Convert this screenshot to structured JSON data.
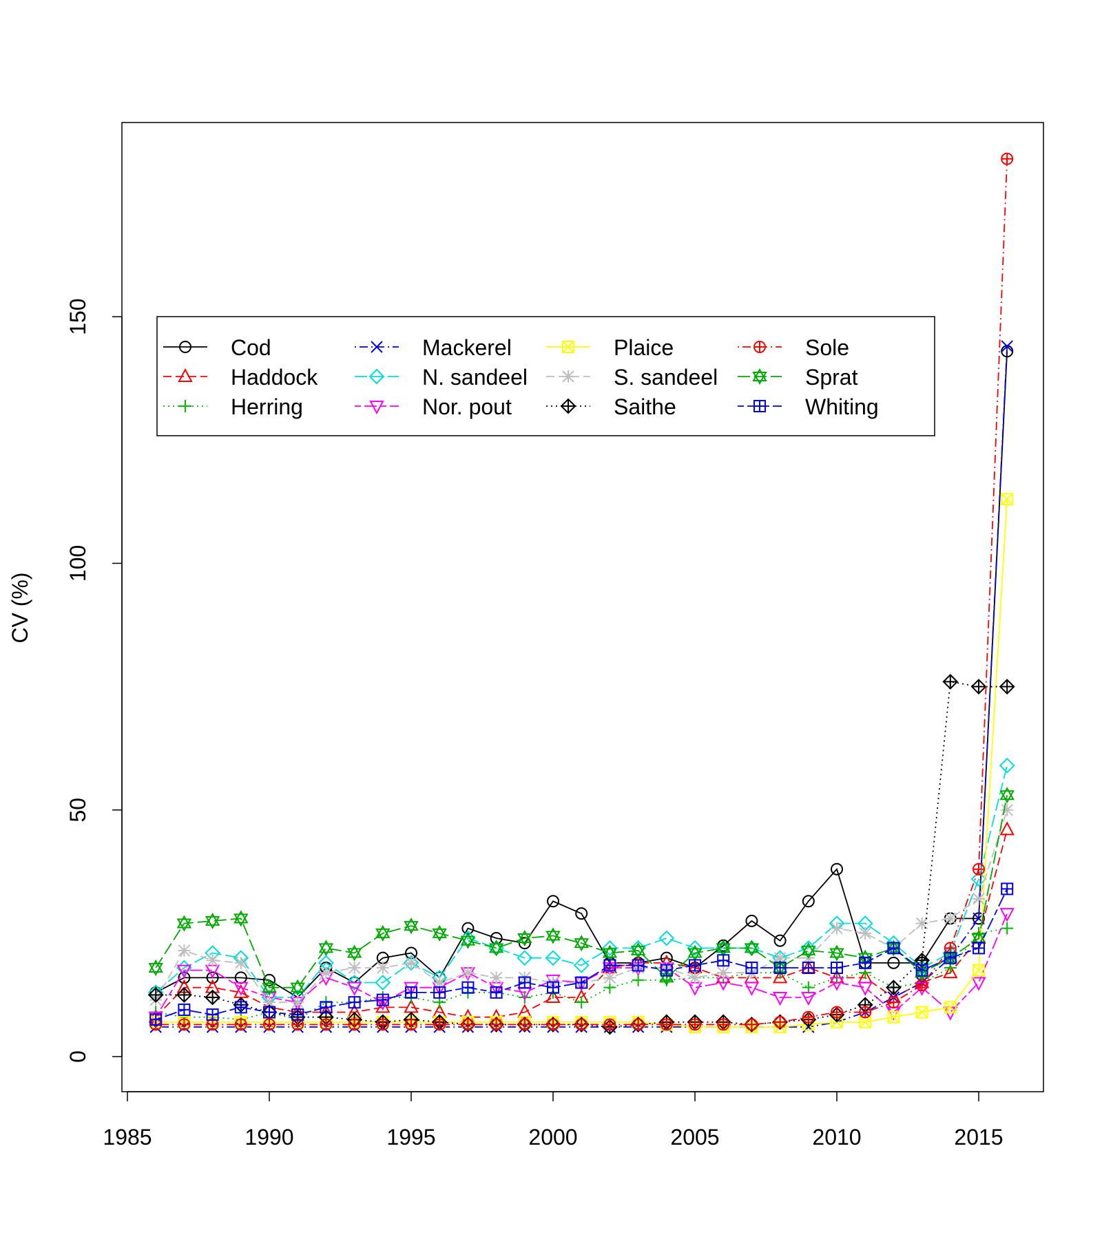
{
  "chart_data": {
    "type": "line",
    "ylabel": "CV (%)",
    "xlabel": "",
    "xlim": [
      1985,
      2017
    ],
    "ylim": [
      -7,
      190
    ],
    "x_ticks": [
      1985,
      1990,
      1995,
      2000,
      2005,
      2010,
      2015
    ],
    "y_ticks": [
      0,
      50,
      100,
      150
    ],
    "x": [
      1986,
      1987,
      1988,
      1989,
      1990,
      1991,
      1992,
      1993,
      1994,
      1995,
      1996,
      1997,
      1998,
      1999,
      2000,
      2001,
      2002,
      2003,
      2004,
      2005,
      2006,
      2007,
      2008,
      2009,
      2010,
      2011,
      2012,
      2013,
      2014,
      2015,
      2016
    ],
    "legend_position": "top-left inside",
    "series": [
      {
        "name": "Cod",
        "color": "#000000",
        "dash": "solid",
        "marker": "circle",
        "values": [
          13,
          16,
          16,
          16,
          15.5,
          12,
          18,
          15,
          20,
          21,
          16,
          26,
          24,
          23,
          31.5,
          29,
          19,
          19,
          20,
          18,
          22.5,
          27.5,
          23.5,
          31.5,
          38,
          19,
          19,
          19,
          28,
          28,
          143
        ]
      },
      {
        "name": "Haddock",
        "color": "#ff0000",
        "dash": "dashed",
        "marker": "triangle-up",
        "values": [
          8,
          14,
          14,
          13,
          10,
          9,
          9,
          9,
          10,
          10,
          9,
          8,
          8,
          9,
          12,
          12,
          18,
          19,
          19,
          18,
          16,
          16,
          16,
          18,
          16,
          16,
          12,
          15,
          17,
          24,
          46
        ]
      },
      {
        "name": "Herring",
        "color": "#00bb00",
        "dash": "dotted",
        "marker": "plus",
        "values": [
          9,
          8,
          8,
          7.5,
          9,
          7.5,
          11,
          11,
          12,
          12,
          11,
          13,
          13,
          12,
          13,
          11,
          14,
          15.5,
          15.5,
          16,
          16,
          17,
          17,
          14,
          16,
          17,
          14,
          15,
          18,
          25,
          26
        ]
      },
      {
        "name": "Mackerel",
        "color": "#0000ee",
        "dash": "dotdash",
        "marker": "x",
        "values": [
          6,
          6,
          6,
          6,
          6,
          6,
          6,
          6,
          6,
          6,
          6,
          6,
          6,
          6,
          6,
          6,
          6,
          6,
          6,
          6,
          6,
          6,
          6,
          6,
          7,
          9,
          12,
          15,
          20,
          28,
          144
        ]
      },
      {
        "name": "N. sandeel",
        "color": "#00dddd",
        "dash": "longdash",
        "marker": "diamond",
        "values": [
          13,
          18,
          21,
          20,
          12,
          12,
          19,
          15,
          15,
          19,
          16,
          24,
          22,
          20,
          20,
          18.5,
          22,
          22,
          24,
          22,
          22,
          22,
          20,
          22,
          27,
          27,
          23,
          18,
          21,
          36,
          59
        ]
      },
      {
        "name": "Nor. pout",
        "color": "#ff00ff",
        "dash": "twodash",
        "marker": "triangle-down",
        "values": [
          8,
          17.5,
          17.5,
          14,
          12,
          11,
          16,
          14,
          11,
          14,
          14,
          17,
          14,
          13,
          15.5,
          15,
          18,
          18,
          18,
          14,
          15,
          14,
          12,
          12,
          15,
          14,
          9,
          14,
          9,
          15,
          29
        ]
      },
      {
        "name": "Plaice",
        "color": "#ffff00",
        "dash": "solid",
        "marker": "square-x",
        "values": [
          7,
          7,
          7,
          7,
          7,
          7,
          7,
          7,
          7,
          7,
          7,
          7,
          7,
          7,
          7,
          7,
          7,
          7,
          6.5,
          6,
          6,
          6,
          6,
          6.5,
          7,
          7,
          8,
          9,
          10,
          17.5,
          113
        ]
      },
      {
        "name": "S. sandeel",
        "color": "#bebebe",
        "dash": "dashed",
        "marker": "star",
        "values": [
          11.5,
          21.5,
          19.5,
          19,
          11,
          11,
          17,
          18,
          18,
          19,
          15,
          17,
          16,
          16,
          15,
          15,
          16,
          18,
          18,
          16,
          17,
          17,
          20,
          20,
          26,
          25,
          22,
          27,
          28,
          32,
          50
        ]
      },
      {
        "name": "Saithe",
        "color": "#000000",
        "dash": "dotted",
        "marker": "diamond-plus",
        "values": [
          12.5,
          12.5,
          12,
          10.5,
          9,
          8,
          8,
          7.5,
          7,
          7.5,
          7,
          6.5,
          6.5,
          6.5,
          6.5,
          6.5,
          6,
          6.5,
          7,
          7,
          7,
          6.5,
          7,
          7.5,
          8.5,
          10.5,
          14,
          19.5,
          76,
          75,
          75
        ]
      },
      {
        "name": "Sole",
        "color": "#ff0000",
        "dash": "dotdash",
        "marker": "circle-plus",
        "values": [
          6.5,
          6.5,
          6.5,
          6.5,
          6.5,
          6.5,
          6.5,
          6.5,
          6.5,
          6.5,
          6.5,
          6.5,
          6.5,
          6.5,
          6.5,
          6.5,
          6.5,
          6.5,
          6.5,
          6.5,
          6.5,
          6.5,
          7,
          8,
          9,
          9,
          11,
          14.5,
          22,
          38,
          182
        ]
      },
      {
        "name": "Sprat",
        "color": "#00aa00",
        "dash": "longdash",
        "marker": "star-of-david",
        "values": [
          18,
          27,
          27.5,
          28,
          14,
          14,
          22,
          21,
          25,
          26.5,
          25,
          23.5,
          22,
          24,
          24.5,
          23,
          21,
          21.5,
          16,
          21,
          22,
          22,
          18,
          21.5,
          21,
          20,
          22,
          17,
          20,
          24,
          53
        ]
      },
      {
        "name": "Whiting",
        "color": "#0000ee",
        "dash": "twodash",
        "marker": "square-plus",
        "values": [
          7.5,
          9.5,
          8.5,
          10,
          9,
          8.5,
          10,
          11,
          11.5,
          13,
          13,
          14,
          13,
          15,
          14,
          15,
          18.5,
          18.5,
          17.5,
          18.5,
          19.5,
          18,
          18,
          18,
          18,
          19,
          22,
          17.5,
          20,
          22,
          34
        ]
      }
    ]
  }
}
